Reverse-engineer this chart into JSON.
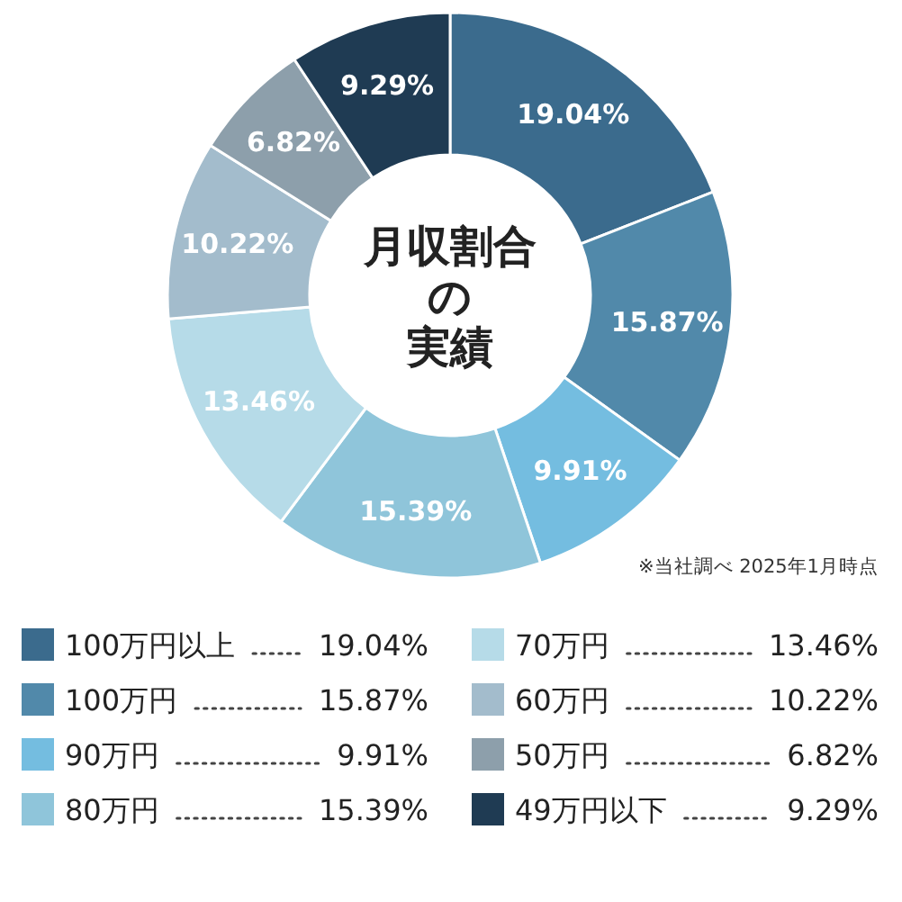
{
  "chart_data": {
    "type": "donut",
    "title": "月収割合の実績",
    "categories": [
      "100万円以上",
      "100万円",
      "90万円",
      "80万円",
      "70万円",
      "60万円",
      "50万円",
      "49万円以下"
    ],
    "values": [
      19.04,
      15.87,
      9.91,
      15.39,
      13.46,
      10.22,
      6.82,
      9.29
    ],
    "value_labels": [
      "19.04%",
      "15.87%",
      "9.91%",
      "15.39%",
      "13.46%",
      "10.22%",
      "6.82%",
      "9.29%"
    ],
    "colors": [
      "#3b6b8d",
      "#5189aa",
      "#74bde0",
      "#8fc5da",
      "#b6dbe8",
      "#a3bccc",
      "#8d9fab",
      "#1f3b53"
    ],
    "annotations": [
      "※当社調べ 2025年1月時点"
    ],
    "legend": "bottom"
  }
}
